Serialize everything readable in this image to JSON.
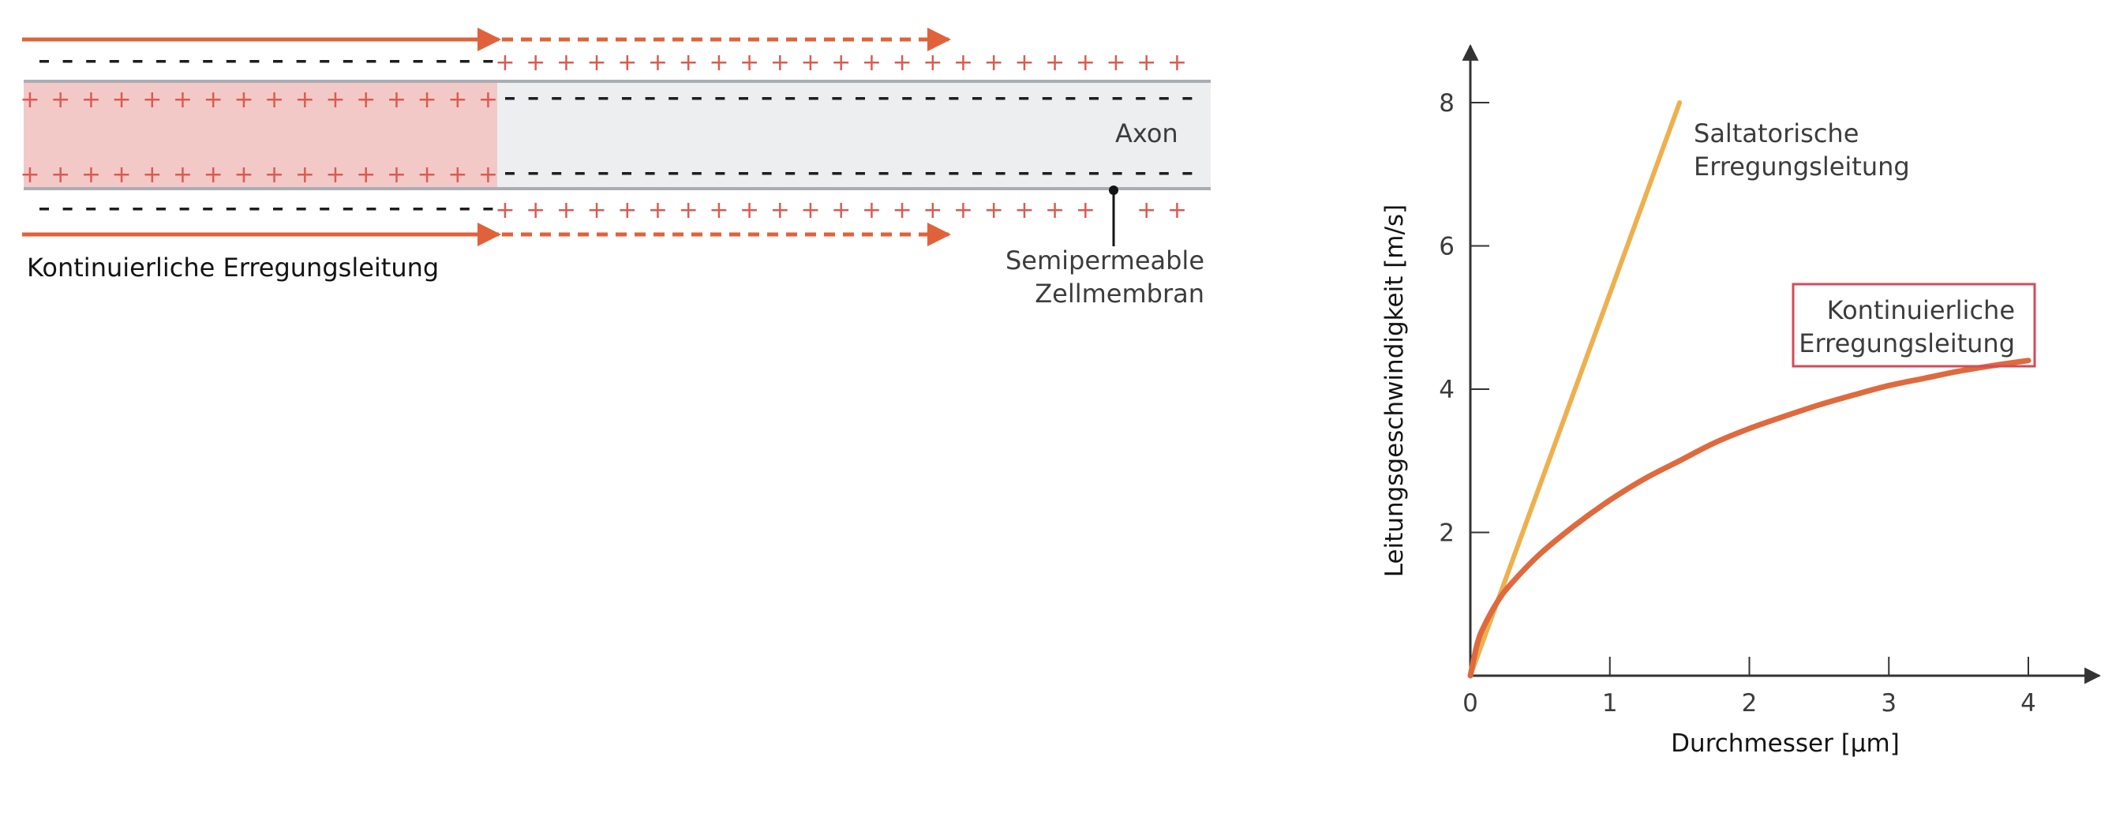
{
  "colors": {
    "accent": "#e1623a",
    "plus": "#dc5a50",
    "minus": "#1e1e1e",
    "excited_fill": "#f2c9c7",
    "axon_fill": "#eceef0",
    "membrane": "#a9aeb3",
    "saltatory": "#eeb04e",
    "continuous": "#de6a3e",
    "legend_box": "#d64a58",
    "axis": "#333333"
  },
  "diagram": {
    "title": "Kontinuierliche Erregungsleitung",
    "axon_label": "Axon",
    "membrane_label": [
      "Semipermeable",
      "Zellmembran"
    ],
    "plus_symbol": "+",
    "minus_symbol": "-",
    "icons": [
      "arrow-right-icon",
      "arrow-right-dashed-icon"
    ]
  },
  "chart_data": {
    "type": "line",
    "xlabel": "Durchmesser  [µm]",
    "ylabel": "Leitungsgeschwindigkeit  [m/s]",
    "xlim": [
      0,
      4
    ],
    "ylim": [
      0,
      8
    ],
    "x_ticks": [
      0,
      1,
      2,
      3,
      4
    ],
    "y_ticks": [
      2,
      4,
      6,
      8
    ],
    "grid": false,
    "series": [
      {
        "name": "Saltatorische Erregungsleitung",
        "label_lines": [
          "Saltatorische",
          "Erregungsleitung"
        ],
        "color": "#eeb04e",
        "x": [
          0,
          1.5
        ],
        "y": [
          0,
          8
        ]
      },
      {
        "name": "Kontinuierliche Erregungsleitung",
        "label_lines": [
          "Kontinuierliche",
          "Erregungsleitung"
        ],
        "color": "#de6a3e",
        "boxed": true,
        "x": [
          0,
          0.05,
          0.1,
          0.2,
          0.3,
          0.5,
          0.75,
          1.0,
          1.25,
          1.5,
          1.75,
          2.0,
          2.25,
          2.5,
          2.75,
          3.0,
          3.25,
          3.5,
          3.75,
          4.0
        ],
        "y": [
          0,
          0.45,
          0.7,
          1.05,
          1.3,
          1.7,
          2.1,
          2.45,
          2.75,
          3.0,
          3.25,
          3.45,
          3.62,
          3.78,
          3.92,
          4.05,
          4.15,
          4.25,
          4.33,
          4.4
        ]
      }
    ]
  }
}
